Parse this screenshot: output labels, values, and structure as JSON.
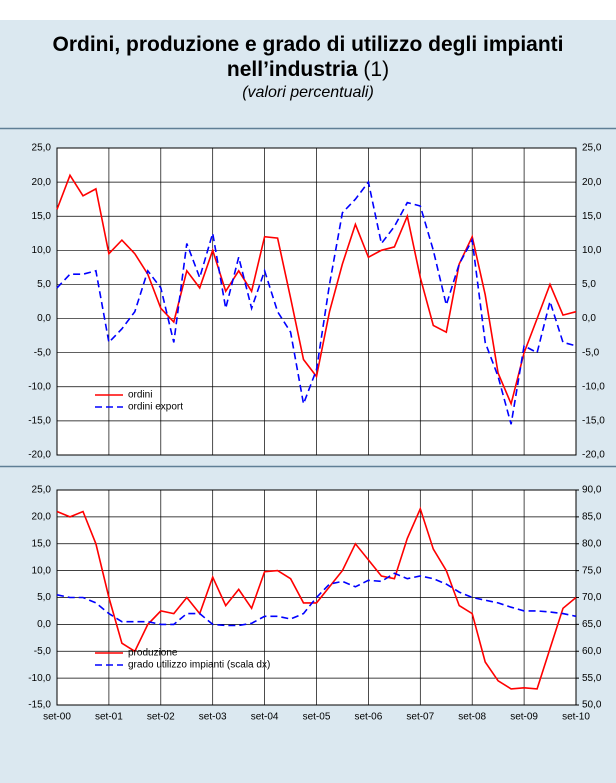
{
  "header": {
    "title": "Ordini, produzione e grado di utilizzo degli impianti nell’industria",
    "title_note": "(1)",
    "subtitle": "(valori percentuali)"
  },
  "chart_data": [
    {
      "type": "line",
      "legend": "lower left",
      "grid": true,
      "right_axis_labels": true,
      "ylim": [
        -20,
        25
      ],
      "yticks": [
        {
          "value": -20,
          "label": "-20,0"
        },
        {
          "value": -15,
          "label": "-15,0"
        },
        {
          "value": -10,
          "label": "-10,0"
        },
        {
          "value": -5,
          "label": "-5,0"
        },
        {
          "value": 0,
          "label": "0,0"
        },
        {
          "value": 5,
          "label": "5,0"
        },
        {
          "value": 10,
          "label": "10,0"
        },
        {
          "value": 15,
          "label": "15,0"
        },
        {
          "value": 20,
          "label": "20,0"
        },
        {
          "value": 25,
          "label": "25,0"
        }
      ],
      "series": [
        {
          "name": "ordini",
          "color": "#ff0000",
          "dash": false,
          "values": [
            16,
            21,
            18,
            19,
            9.5,
            11.5,
            9.5,
            6.5,
            1.5,
            -0.5,
            7,
            4.5,
            10,
            4,
            7,
            4,
            12,
            11.8,
            3,
            -6,
            -8.5,
            1,
            8,
            13.8,
            9,
            10,
            10.5,
            15,
            6,
            -1,
            -2,
            8,
            12,
            3.5,
            -8,
            -12.5,
            -5,
            0,
            5,
            0.5,
            1
          ]
        },
        {
          "name": "ordini export",
          "color": "#0000ff",
          "dash": true,
          "values": [
            4.5,
            6.5,
            6.5,
            7,
            -3.5,
            -1.5,
            1,
            7,
            4.5,
            -3.5,
            11,
            6,
            12.5,
            1.5,
            9,
            1.5,
            7,
            1,
            -2,
            -12.5,
            -7.5,
            5,
            15.5,
            17.5,
            20,
            11,
            13.5,
            17,
            16.5,
            10,
            2,
            8,
            11.5,
            -3.5,
            -8.5,
            -15.5,
            -4,
            -5,
            2.5,
            -3.5,
            -4
          ]
        }
      ]
    },
    {
      "type": "line",
      "legend": "lower left",
      "grid": true,
      "categories": [
        "set-00",
        null,
        null,
        null,
        "set-01",
        null,
        null,
        null,
        "set-02",
        null,
        null,
        null,
        "set-03",
        null,
        null,
        null,
        "set-04",
        null,
        null,
        null,
        "set-05",
        null,
        null,
        null,
        "set-06",
        null,
        null,
        null,
        "set-07",
        null,
        null,
        null,
        "set-08",
        null,
        null,
        null,
        "set-09",
        null,
        null,
        null,
        "set-10"
      ],
      "ylim": [
        -15,
        25
      ],
      "yticks": [
        {
          "value": -15,
          "label": "-15,0"
        },
        {
          "value": -10,
          "label": "-10,0"
        },
        {
          "value": -5,
          "label": "-5,0"
        },
        {
          "value": 0,
          "label": "0,0"
        },
        {
          "value": 5,
          "label": "5,0"
        },
        {
          "value": 10,
          "label": "10,0"
        },
        {
          "value": 15,
          "label": "15,0"
        },
        {
          "value": 20,
          "label": "20,0"
        },
        {
          "value": 25,
          "label": "25,0"
        }
      ],
      "y2lim": [
        50,
        90
      ],
      "y2ticks": [
        {
          "value": 50,
          "label": "50,0"
        },
        {
          "value": 55,
          "label": "55,0"
        },
        {
          "value": 60,
          "label": "60,0"
        },
        {
          "value": 65,
          "label": "65,0"
        },
        {
          "value": 70,
          "label": "70,0"
        },
        {
          "value": 75,
          "label": "75,0"
        },
        {
          "value": 80,
          "label": "80,0"
        },
        {
          "value": 85,
          "label": "85,0"
        },
        {
          "value": 90,
          "label": "90,0"
        }
      ],
      "series": [
        {
          "name": "produzione",
          "color": "#ff0000",
          "dash": false,
          "values": [
            21,
            20,
            21,
            15,
            5,
            -3.5,
            -5,
            0,
            2.5,
            2,
            5,
            2,
            8.8,
            3.5,
            6.5,
            3,
            9.8,
            10,
            8.5,
            4,
            4,
            7,
            10,
            15,
            12,
            9,
            8.5,
            16,
            21.5,
            14,
            10,
            3.5,
            2,
            -7,
            -10.5,
            -12,
            -11.8,
            -12,
            -4.5,
            3,
            5
          ]
        },
        {
          "name": "grado utilizzo impianti (scala dx)",
          "color": "#0000ff",
          "dash": true,
          "axis": "y2",
          "values": [
            70.5,
            70,
            70,
            69,
            67,
            65.5,
            65.5,
            65.5,
            65,
            65,
            67,
            67,
            65,
            64.8,
            64.8,
            65.2,
            66.5,
            66.5,
            66,
            67,
            70,
            72.5,
            73,
            72,
            73.2,
            73,
            74.5,
            73.5,
            74,
            73.5,
            72.5,
            71,
            70,
            69.5,
            69,
            68.2,
            67.5,
            67.5,
            67.3,
            67,
            66.5
          ]
        }
      ]
    }
  ]
}
